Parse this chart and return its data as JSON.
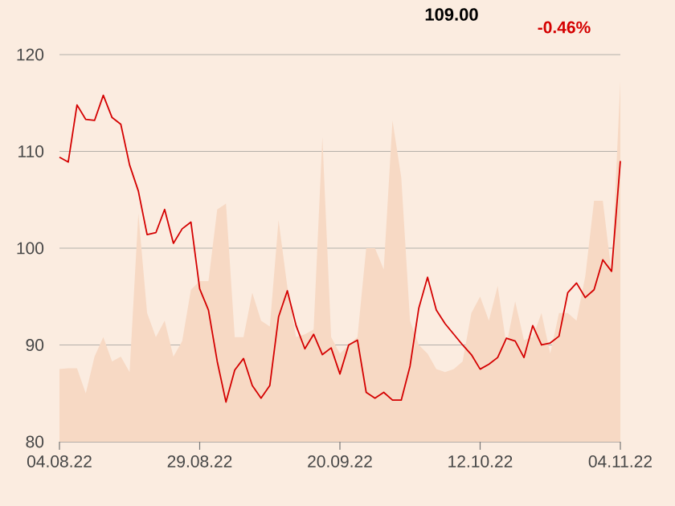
{
  "chart_data": {
    "type": "line",
    "annotations": [
      "109.00",
      "-0.46%"
    ],
    "categories": [
      "04.08.22",
      null,
      null,
      null,
      null,
      null,
      null,
      null,
      null,
      null,
      null,
      null,
      null,
      null,
      null,
      null,
      "29.08.22",
      null,
      null,
      null,
      null,
      null,
      null,
      null,
      null,
      null,
      null,
      null,
      null,
      null,
      null,
      null,
      "20.09.22",
      null,
      null,
      null,
      null,
      null,
      null,
      null,
      null,
      null,
      null,
      null,
      null,
      null,
      null,
      null,
      "12.10.22",
      null,
      null,
      null,
      null,
      null,
      null,
      null,
      null,
      null,
      null,
      null,
      null,
      null,
      null,
      null,
      "04.11.22"
    ],
    "series": [
      {
        "type": "area",
        "color": "#f7d9c4",
        "values": [
          87.5,
          87.6,
          87.6,
          85,
          88.8,
          90.8,
          88.3,
          88.8,
          87.2,
          103.6,
          93.3,
          90.8,
          92.5,
          88.8,
          90.4,
          95.7,
          96.6,
          96.6,
          104,
          104.6,
          90.8,
          90.8,
          95.4,
          92.5,
          91.9,
          102.9,
          96,
          90.8,
          91.1,
          91.6,
          111.5,
          90.8,
          89.1,
          90,
          90.8,
          100,
          100,
          97.8,
          113.2,
          107.3,
          92.5,
          90,
          89.1,
          87.5,
          87.2,
          87.5,
          88.3,
          93.3,
          95,
          92.5,
          96.1,
          90,
          94.5,
          90.5,
          90.8,
          93.3,
          89.1,
          93.3,
          93.3,
          92.5,
          97.1,
          104.9,
          104.9,
          97.4,
          117.3
        ]
      },
      {
        "color": "#d40000",
        "values": [
          109.4,
          108.9,
          114.8,
          113.3,
          113.2,
          115.8,
          113.5,
          112.8,
          108.6,
          105.9,
          101.4,
          101.6,
          104,
          100.5,
          102,
          102.7,
          95.8,
          93.6,
          88.3,
          84.1,
          87.4,
          88.6,
          85.8,
          84.5,
          85.8,
          92.9,
          95.6,
          92,
          89.6,
          91.1,
          89,
          89.7,
          87,
          90,
          90.5,
          85.1,
          84.5,
          85.1,
          84.3,
          84.3,
          87.8,
          93.8,
          97,
          93.6,
          92.2,
          91.1,
          90,
          89,
          87.5,
          88,
          88.7,
          90.7,
          90.4,
          88.7,
          92,
          90,
          90.2,
          90.9,
          95.4,
          96.4,
          94.9,
          95.7,
          98.8,
          97.6,
          109
        ]
      }
    ],
    "ylim": [
      80,
      120
    ],
    "yticks": [
      80,
      90,
      100,
      110,
      120
    ],
    "grid": "y"
  }
}
